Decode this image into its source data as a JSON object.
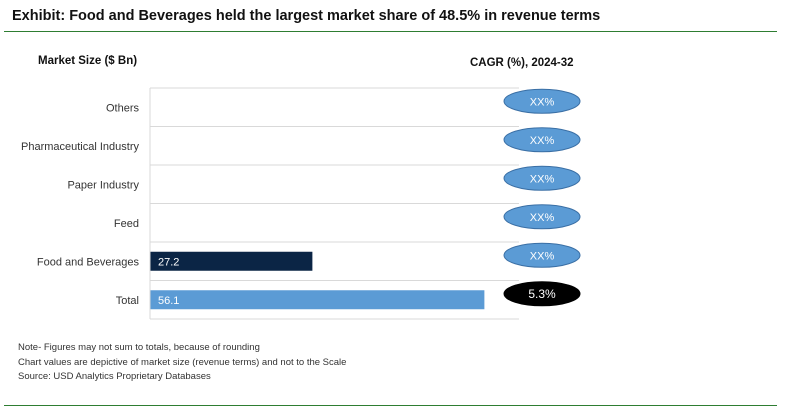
{
  "header": {
    "title": "Exhibit: Food and Beverages held the largest market share of 48.5% in revenue terms"
  },
  "colors": {
    "rule": "#2e7d32",
    "bar_primary": "#0b2545",
    "bar_total": "#5b9bd5",
    "bubble": "#5b9bd5",
    "bubble_total": "#000000",
    "grid": "#d9d9d9"
  },
  "chart_data": {
    "type": "bar",
    "orientation": "horizontal",
    "title": "Exhibit: Food and Beverages held the largest market share of 48.5% in revenue terms",
    "ylabel": "Market Size ($ Bn)",
    "xlabel": "",
    "categories": [
      "Others",
      "Pharmaceutical Industry",
      "Paper Industry",
      "Feed",
      "Food and Beverages",
      "Total"
    ],
    "values": [
      null,
      null,
      null,
      null,
      27.2,
      56.1
    ],
    "value_labels": [
      "",
      "",
      "",
      "",
      "27.2",
      "56.1"
    ],
    "xlim": [
      0,
      62
    ],
    "grid": true,
    "cagr": {
      "header": "CAGR (%), 2024-32",
      "values": [
        "XX%",
        "XX%",
        "XX%",
        "XX%",
        "XX%",
        "5.3%"
      ]
    }
  },
  "notes": [
    "Note- Figures may not sum to totals, because of rounding",
    "Chart values are depictive of market size (revenue terms) and not to the Scale",
    "Source: USD Analytics Proprietary Databases"
  ]
}
